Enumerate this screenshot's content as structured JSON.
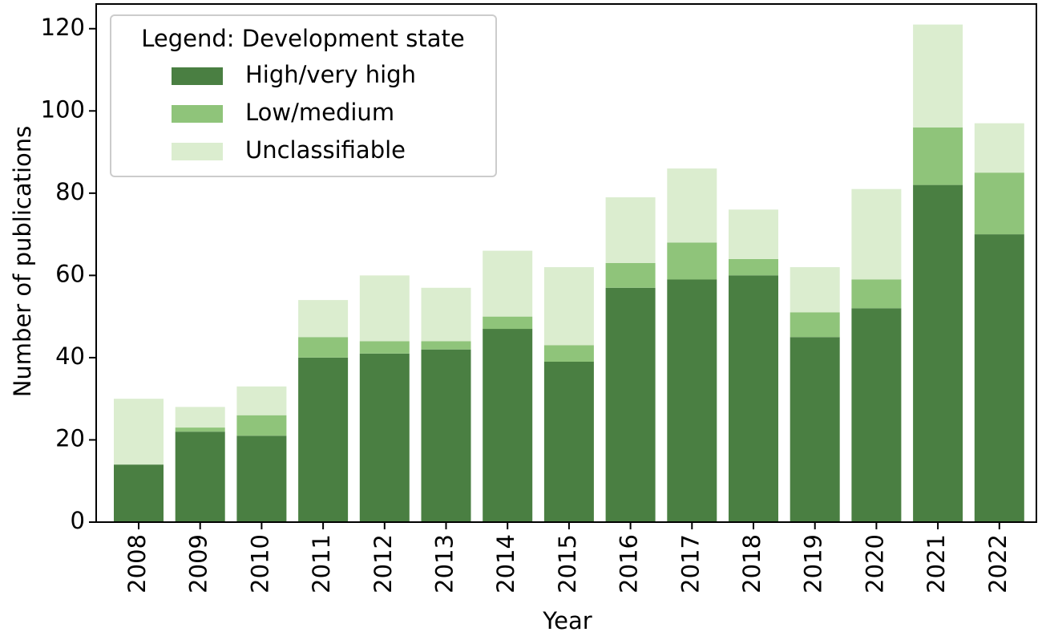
{
  "chart_data": {
    "type": "bar",
    "stacked": true,
    "categories": [
      "2008",
      "2009",
      "2010",
      "2011",
      "2012",
      "2013",
      "2014",
      "2015",
      "2016",
      "2017",
      "2018",
      "2019",
      "2020",
      "2021",
      "2022"
    ],
    "series": [
      {
        "name": "High/very high",
        "color": "#4a7f42",
        "values": [
          14,
          22,
          21,
          40,
          41,
          42,
          47,
          39,
          57,
          59,
          60,
          45,
          52,
          82,
          70
        ]
      },
      {
        "name": "Low/medium",
        "color": "#8fc47a",
        "values": [
          0,
          1,
          5,
          5,
          3,
          2,
          3,
          4,
          6,
          9,
          4,
          6,
          7,
          14,
          15
        ]
      },
      {
        "name": "Unclassifiable",
        "color": "#dbedcf",
        "values": [
          16,
          5,
          7,
          9,
          16,
          13,
          16,
          19,
          16,
          18,
          12,
          11,
          22,
          25,
          12
        ]
      }
    ],
    "xlabel": "Year",
    "ylabel": "Number of publications",
    "ylim": [
      0,
      126
    ],
    "yticks": [
      0,
      20,
      40,
      60,
      80,
      100,
      120
    ],
    "legend": {
      "title": "Legend: Development state",
      "placement": "top-left"
    },
    "grid": false
  }
}
